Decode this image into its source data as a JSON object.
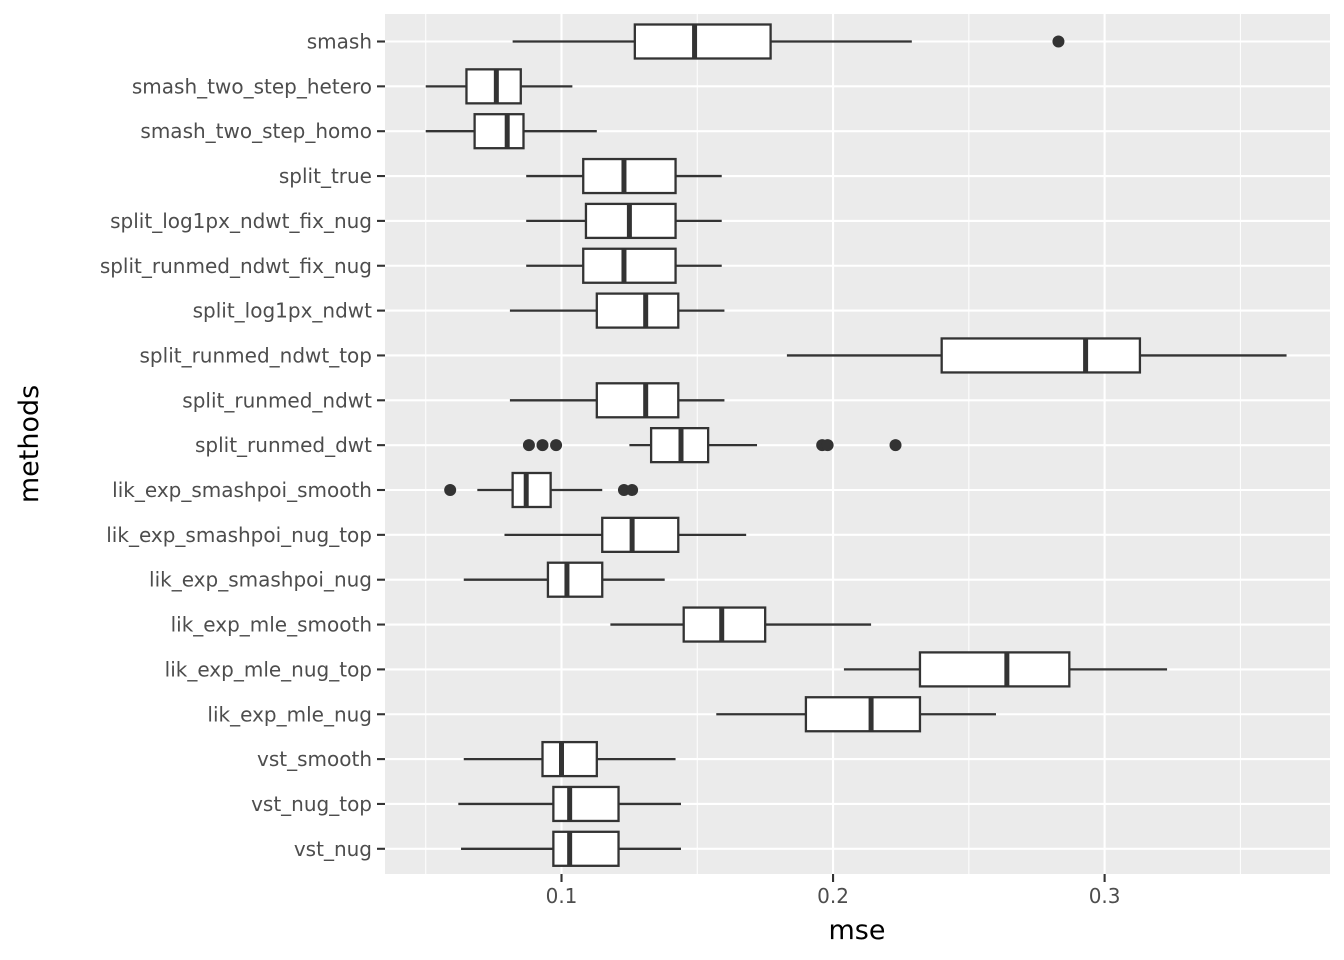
{
  "chart_data": {
    "type": "boxplot",
    "orientation": "horizontal",
    "title": "",
    "xlabel": "mse",
    "ylabel": "methods",
    "xlim": [
      0.035,
      0.383
    ],
    "xticks": [
      0.1,
      0.2,
      0.3
    ],
    "xtick_labels": [
      "0.1",
      "0.2",
      "0.3"
    ],
    "grid": true,
    "categories": [
      "smash",
      "smash_two_step_hetero",
      "smash_two_step_homo",
      "split_true",
      "split_log1px_ndwt_fix_nug",
      "split_runmed_ndwt_fix_nug",
      "split_log1px_ndwt",
      "split_runmed_ndwt_top",
      "split_runmed_ndwt",
      "split_runmed_dwt",
      "lik_exp_smashpoi_smooth",
      "lik_exp_smashpoi_nug_top",
      "lik_exp_smashpoi_nug",
      "lik_exp_mle_smooth",
      "lik_exp_mle_nug_top",
      "lik_exp_mle_nug",
      "vst_smooth",
      "vst_nug_top",
      "vst_nug"
    ],
    "boxes": [
      {
        "min": 0.082,
        "q1": 0.127,
        "median": 0.149,
        "q3": 0.177,
        "max": 0.229,
        "outliers": [
          0.283
        ]
      },
      {
        "min": 0.05,
        "q1": 0.065,
        "median": 0.076,
        "q3": 0.085,
        "max": 0.104,
        "outliers": []
      },
      {
        "min": 0.05,
        "q1": 0.068,
        "median": 0.08,
        "q3": 0.086,
        "max": 0.113,
        "outliers": []
      },
      {
        "min": 0.087,
        "q1": 0.108,
        "median": 0.123,
        "q3": 0.142,
        "max": 0.159,
        "outliers": []
      },
      {
        "min": 0.087,
        "q1": 0.109,
        "median": 0.125,
        "q3": 0.142,
        "max": 0.159,
        "outliers": []
      },
      {
        "min": 0.087,
        "q1": 0.108,
        "median": 0.123,
        "q3": 0.142,
        "max": 0.159,
        "outliers": []
      },
      {
        "min": 0.081,
        "q1": 0.113,
        "median": 0.131,
        "q3": 0.143,
        "max": 0.16,
        "outliers": []
      },
      {
        "min": 0.183,
        "q1": 0.24,
        "median": 0.293,
        "q3": 0.313,
        "max": 0.367,
        "outliers": []
      },
      {
        "min": 0.081,
        "q1": 0.113,
        "median": 0.131,
        "q3": 0.143,
        "max": 0.16,
        "outliers": []
      },
      {
        "min": 0.125,
        "q1": 0.133,
        "median": 0.144,
        "q3": 0.154,
        "max": 0.172,
        "outliers": [
          0.088,
          0.093,
          0.098,
          0.196,
          0.198,
          0.223
        ]
      },
      {
        "min": 0.069,
        "q1": 0.082,
        "median": 0.087,
        "q3": 0.096,
        "max": 0.115,
        "outliers": [
          0.059,
          0.123,
          0.126
        ]
      },
      {
        "min": 0.079,
        "q1": 0.115,
        "median": 0.126,
        "q3": 0.143,
        "max": 0.168,
        "outliers": []
      },
      {
        "min": 0.064,
        "q1": 0.095,
        "median": 0.102,
        "q3": 0.115,
        "max": 0.138,
        "outliers": []
      },
      {
        "min": 0.118,
        "q1": 0.145,
        "median": 0.159,
        "q3": 0.175,
        "max": 0.214,
        "outliers": []
      },
      {
        "min": 0.204,
        "q1": 0.232,
        "median": 0.264,
        "q3": 0.287,
        "max": 0.323,
        "outliers": []
      },
      {
        "min": 0.157,
        "q1": 0.19,
        "median": 0.214,
        "q3": 0.232,
        "max": 0.26,
        "outliers": []
      },
      {
        "min": 0.064,
        "q1": 0.093,
        "median": 0.1,
        "q3": 0.113,
        "max": 0.142,
        "outliers": []
      },
      {
        "min": 0.062,
        "q1": 0.097,
        "median": 0.103,
        "q3": 0.121,
        "max": 0.144,
        "outliers": []
      },
      {
        "min": 0.063,
        "q1": 0.097,
        "median": 0.103,
        "q3": 0.121,
        "max": 0.144,
        "outliers": []
      }
    ]
  }
}
